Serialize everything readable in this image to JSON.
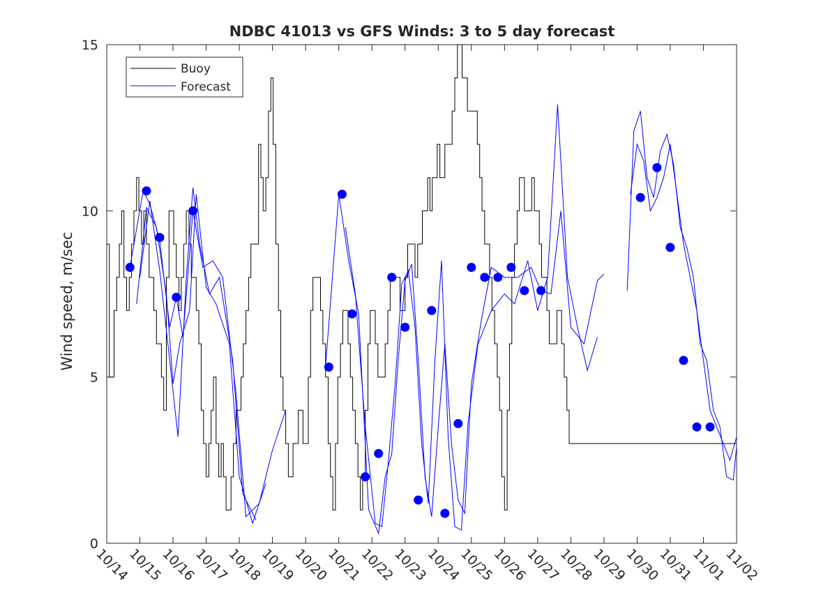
{
  "chart_data": {
    "type": "line",
    "title": "NDBC 41013 vs GFS Winds: 3 to 5 day forecast",
    "xlabel": "",
    "ylabel": "Wind speed, m/sec",
    "xlim": [
      0,
      19
    ],
    "ylim": [
      0,
      15
    ],
    "x_unit": "days since 10/14",
    "grid": false,
    "legend_position": "top-left",
    "x_tick_labels": [
      "10/14",
      "10/15",
      "10/16",
      "10/17",
      "10/18",
      "10/19",
      "10/20",
      "10/21",
      "10/22",
      "10/23",
      "10/24",
      "10/25",
      "10/26",
      "10/27",
      "10/28",
      "10/29",
      "10/30",
      "10/31",
      "11/01",
      "11/02"
    ],
    "y_ticks": [
      0,
      5,
      10,
      15
    ],
    "y_tick_labels": [
      "0",
      "5",
      "10",
      "15"
    ],
    "colors": {
      "buoy": "#000000",
      "forecast": "#0000ff",
      "axes": "#262626"
    },
    "series": [
      {
        "name": "Buoy",
        "style": "step",
        "color": "#000000",
        "x": [
          0.0,
          0.08,
          0.15,
          0.22,
          0.3,
          0.38,
          0.45,
          0.52,
          0.6,
          0.68,
          0.75,
          0.82,
          0.9,
          0.97,
          1.05,
          1.12,
          1.2,
          1.28,
          1.35,
          1.42,
          1.5,
          1.58,
          1.65,
          1.72,
          1.8,
          1.88,
          1.95,
          2.02,
          2.1,
          2.18,
          2.25,
          2.32,
          2.4,
          2.48,
          2.55,
          2.62,
          2.7,
          2.78,
          2.85,
          2.92,
          3.0,
          3.08,
          3.15,
          3.22,
          3.3,
          3.38,
          3.45,
          3.52,
          3.6,
          3.68,
          3.75,
          3.82,
          3.9,
          3.97,
          4.05,
          4.12,
          4.2,
          4.28,
          4.35,
          4.42,
          4.5,
          4.58,
          4.65,
          4.72,
          4.8,
          4.88,
          4.95,
          5.02,
          5.1,
          5.18,
          5.25,
          5.32,
          5.4,
          5.48,
          5.55,
          5.62,
          5.7,
          5.78,
          5.85,
          5.92,
          6.0,
          6.08,
          6.15,
          6.22,
          6.3,
          6.38,
          6.45,
          6.52,
          6.6,
          6.68,
          6.75,
          6.82,
          6.9,
          6.97,
          7.05,
          7.12,
          7.2,
          7.28,
          7.35,
          7.42,
          7.5,
          7.58,
          7.65,
          7.72,
          7.8,
          7.88,
          7.95,
          8.02,
          8.1,
          8.18,
          8.25,
          8.32,
          8.4,
          8.48,
          8.55,
          8.62,
          8.7,
          8.78,
          8.85,
          8.92,
          9.0,
          9.08,
          9.15,
          9.22,
          9.3,
          9.38,
          9.45,
          9.52,
          9.6,
          9.68,
          9.75,
          9.82,
          9.9,
          9.97,
          10.05,
          10.12,
          10.2,
          10.28,
          10.35,
          10.42,
          10.5,
          10.58,
          10.65,
          10.72,
          10.8,
          10.88,
          10.95,
          11.02,
          11.1,
          11.18,
          11.25,
          11.32,
          11.4,
          11.48,
          11.55,
          11.62,
          11.7,
          11.78,
          11.85,
          11.92,
          12.0,
          12.08,
          12.15,
          12.22,
          12.3,
          12.38,
          12.45,
          12.52,
          12.6,
          12.68,
          12.75,
          12.82,
          12.9,
          12.97,
          13.05,
          13.12,
          13.2,
          13.28,
          13.35,
          13.42,
          13.5,
          13.58,
          13.65,
          13.72,
          13.8,
          13.88,
          13.95,
          14.02,
          14.1,
          14.18,
          14.25,
          14.32,
          14.4,
          14.48,
          14.55,
          14.62,
          14.7,
          14.78,
          14.85,
          14.92,
          15.0,
          15.08,
          15.15,
          15.22,
          15.3,
          15.38,
          15.45,
          15.52,
          15.6,
          15.68,
          15.75,
          15.82,
          15.9,
          15.97,
          16.05,
          16.12,
          16.2,
          16.28,
          16.35,
          16.42,
          16.5,
          16.58,
          16.65,
          16.72,
          16.8,
          16.88,
          16.95,
          17.02,
          17.1,
          17.18,
          17.25,
          17.32,
          17.4,
          17.48,
          17.55,
          17.62,
          17.7,
          17.78,
          17.85,
          17.92,
          18.0,
          18.08,
          18.15,
          18.22,
          18.3,
          18.38,
          18.45,
          18.52,
          18.6,
          18.68,
          18.75,
          18.82,
          18.9,
          18.97
        ],
        "y": [
          9,
          5,
          5,
          7,
          8,
          9,
          10,
          8,
          7,
          8,
          9,
          10,
          11,
          10,
          9,
          10,
          9,
          8,
          8,
          7,
          6,
          6,
          5,
          4,
          8,
          10,
          10,
          9,
          8,
          7,
          8,
          9,
          10,
          9,
          8,
          8,
          7,
          6,
          4,
          3,
          2,
          3,
          4,
          5,
          3,
          2,
          3,
          2,
          1,
          1,
          2,
          3,
          4,
          4,
          5,
          6,
          7,
          8,
          9,
          9,
          9,
          12,
          11,
          10,
          11,
          13,
          14,
          12,
          9,
          7,
          5,
          4,
          3,
          2,
          2,
          3,
          3,
          4,
          4,
          3,
          3,
          5,
          7,
          8,
          8,
          8,
          7,
          6,
          5,
          3,
          2,
          1,
          3,
          5,
          6,
          7,
          7,
          6,
          5,
          4,
          3,
          2,
          1,
          2,
          4,
          6,
          7,
          7,
          6,
          5,
          5,
          5,
          6,
          7,
          8,
          8,
          8,
          8,
          7,
          7,
          8,
          9,
          9,
          9,
          8,
          9,
          9,
          10,
          10,
          11,
          10,
          11,
          11,
          12,
          11,
          11,
          12,
          12,
          12,
          13,
          14,
          15,
          15,
          14,
          14,
          13,
          13,
          13,
          13,
          12,
          11,
          10,
          9,
          9,
          8,
          7,
          6,
          5,
          4,
          2,
          1,
          4,
          6,
          8,
          9,
          10,
          11,
          11,
          10,
          10,
          10,
          11,
          10,
          10,
          9,
          8,
          8,
          7,
          6,
          6,
          6,
          7,
          7,
          6,
          5,
          4,
          3,
          3,
          3,
          3,
          3,
          3,
          3,
          3,
          3,
          3,
          3,
          3,
          3,
          3,
          3,
          3,
          3,
          3,
          3,
          3,
          3,
          3,
          3,
          3,
          3,
          3,
          3,
          3,
          3,
          3,
          3,
          3,
          3,
          3,
          3,
          3,
          3,
          3,
          3,
          3,
          3,
          3,
          3,
          3,
          3,
          3,
          3,
          3,
          3,
          3,
          3,
          3,
          3,
          3,
          3,
          3,
          3,
          3,
          3,
          3,
          3,
          3,
          3,
          3,
          3,
          3,
          3,
          3
        ]
      },
      {
        "name": "Forecast",
        "style": "line",
        "color": "#0000ff",
        "segments": [
          {
            "x": [
              0.7,
              1.1,
              1.3,
              1.6,
              1.9,
              2.1,
              2.3,
              2.6,
              2.9,
              3.2,
              3.5,
              3.9,
              4.2,
              4.6,
              5.0,
              5.4
            ],
            "y": [
              8.3,
              10.6,
              10.2,
              9.1,
              6.5,
              7.4,
              6.2,
              10.0,
              8.3,
              8.5,
              8.0,
              4.5,
              0.8,
              1.2,
              2.8,
              4.0
            ]
          },
          {
            "x": [
              0.9,
              1.2,
              1.5,
              1.8,
              2.0,
              2.2,
              2.5,
              2.7,
              3.0,
              3.3,
              3.7,
              4.0,
              4.4,
              4.8
            ],
            "y": [
              7.2,
              10.1,
              9.5,
              7.5,
              4.8,
              6.0,
              7.0,
              10.5,
              7.7,
              7.2,
              6.0,
              2.0,
              0.6,
              1.8
            ]
          },
          {
            "x": [
              1.0,
              1.3,
              1.6,
              1.9,
              2.15,
              2.4,
              2.6,
              2.8,
              3.1,
              3.4,
              3.8,
              4.1,
              4.5
            ],
            "y": [
              8.0,
              10.3,
              8.2,
              5.5,
              3.2,
              8.0,
              10.7,
              9.0,
              7.5,
              8.0,
              5.5,
              1.5,
              0.7
            ]
          },
          {
            "x": [
              6.6,
              7.0,
              7.3,
              7.6,
              7.9,
              8.2,
              8.4,
              8.6,
              8.8,
              9.0,
              9.2,
              9.4,
              9.6,
              9.8,
              10.0,
              10.2,
              10.4,
              10.6,
              10.8,
              11.0,
              11.3,
              11.6,
              12.0,
              12.4,
              12.8,
              13.1,
              13.4,
              13.7,
              14.0,
              14.4,
              14.8,
              15.0
            ],
            "y": [
              5.3,
              10.5,
              8.5,
              6.9,
              1.0,
              0.3,
              2.0,
              2.7,
              5.6,
              7.9,
              8.4,
              5.5,
              2.0,
              0.8,
              3.5,
              6.0,
              3.0,
              1.3,
              0.9,
              4.8,
              6.7,
              8.3,
              8.0,
              8.0,
              8.3,
              7.6,
              7.5,
              10.0,
              6.5,
              6.0,
              7.9,
              8.1
            ]
          },
          {
            "x": [
              7.2,
              7.5,
              7.8,
              8.1,
              8.3,
              8.5,
              8.7,
              8.9,
              9.1,
              9.3,
              9.5,
              9.7,
              9.9,
              10.1,
              10.3,
              10.5,
              10.7,
              10.9,
              11.2,
              11.6,
              12.0,
              12.3,
              12.7,
              13.0,
              13.3,
              13.6,
              13.9,
              14.2,
              14.5,
              14.8
            ],
            "y": [
              9.5,
              7.5,
              3.5,
              0.6,
              0.5,
              2.5,
              4.8,
              7.8,
              8.2,
              6.5,
              3.0,
              1.2,
              5.5,
              8.5,
              3.2,
              0.5,
              0.4,
              3.6,
              6.0,
              7.0,
              7.5,
              7.2,
              8.5,
              7.0,
              8.0,
              13.2,
              8.0,
              6.5,
              5.2,
              6.2
            ]
          },
          {
            "x": [
              15.7,
              15.9,
              16.1,
              16.3,
              16.5,
              16.7,
              16.9,
              17.1,
              17.3,
              17.5,
              17.7,
              17.9,
              18.1,
              18.3,
              18.5,
              18.7,
              18.9,
              19.0
            ],
            "y": [
              7.6,
              12.4,
              13.0,
              11.0,
              10.4,
              11.8,
              12.3,
              11.4,
              9.5,
              8.9,
              8.0,
              6.0,
              5.5,
              4.0,
              3.5,
              2.0,
              1.9,
              2.9
            ]
          },
          {
            "x": [
              15.8,
              16.0,
              16.2,
              16.4,
              16.6,
              16.8,
              17.0,
              17.2,
              17.4,
              17.6,
              17.8,
              18.0,
              18.2,
              18.4,
              18.6,
              18.8,
              19.0
            ],
            "y": [
              10.5,
              12.0,
              11.5,
              10.0,
              10.4,
              11.0,
              12.0,
              10.5,
              9.0,
              8.0,
              7.0,
              5.5,
              4.0,
              3.5,
              3.0,
              2.5,
              3.2
            ]
          }
        ],
        "markers": {
          "x": [
            0.7,
            1.2,
            1.6,
            2.1,
            2.6,
            6.7,
            7.1,
            7.4,
            7.8,
            8.2,
            8.6,
            9.0,
            9.4,
            9.8,
            10.2,
            10.6,
            11.0,
            11.4,
            11.8,
            12.2,
            12.6,
            13.1,
            16.1,
            16.6,
            17.0,
            17.4,
            17.8,
            18.2
          ],
          "y": [
            8.3,
            10.6,
            9.2,
            7.4,
            10.0,
            5.3,
            10.5,
            6.9,
            2.0,
            2.7,
            8.0,
            6.5,
            1.3,
            7.0,
            0.9,
            3.6,
            8.3,
            8.0,
            8.0,
            8.3,
            7.6,
            7.6,
            10.4,
            11.3,
            8.9,
            5.5,
            3.5,
            3.5
          ]
        }
      }
    ]
  }
}
